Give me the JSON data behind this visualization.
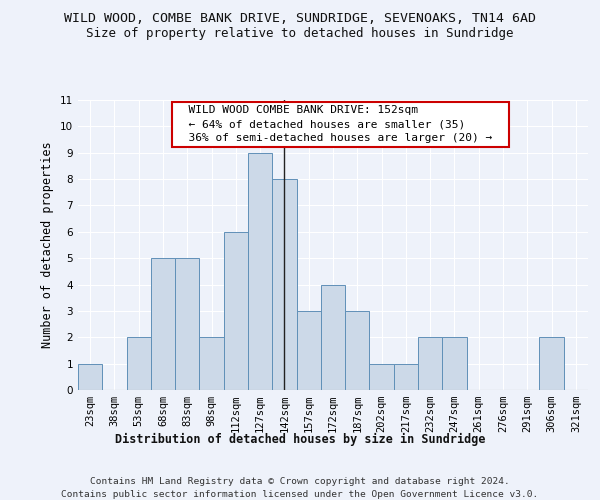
{
  "title": "WILD WOOD, COMBE BANK DRIVE, SUNDRIDGE, SEVENOAKS, TN14 6AD",
  "subtitle": "Size of property relative to detached houses in Sundridge",
  "xlabel": "Distribution of detached houses by size in Sundridge",
  "ylabel": "Number of detached properties",
  "footer_line1": "Contains HM Land Registry data © Crown copyright and database right 2024.",
  "footer_line2": "Contains public sector information licensed under the Open Government Licence v3.0.",
  "categories": [
    "23sqm",
    "38sqm",
    "53sqm",
    "68sqm",
    "83sqm",
    "98sqm",
    "112sqm",
    "127sqm",
    "142sqm",
    "157sqm",
    "172sqm",
    "187sqm",
    "202sqm",
    "217sqm",
    "232sqm",
    "247sqm",
    "261sqm",
    "276sqm",
    "291sqm",
    "306sqm",
    "321sqm"
  ],
  "values": [
    1,
    0,
    2,
    5,
    5,
    2,
    6,
    9,
    8,
    3,
    4,
    3,
    1,
    1,
    2,
    2,
    0,
    0,
    0,
    2,
    0
  ],
  "property_bin_index": 8,
  "bar_color": "#ccd9e8",
  "bar_edge_color": "#6090b8",
  "highlight_line_color": "#222222",
  "annotation_box_text": "  WILD WOOD COMBE BANK DRIVE: 152sqm  \n  ← 64% of detached houses are smaller (35)  \n  36% of semi-detached houses are larger (20) →  ",
  "annotation_box_edge_color": "#cc0000",
  "annotation_box_face_color": "#ffffff",
  "ylim": [
    0,
    11
  ],
  "yticks": [
    0,
    1,
    2,
    3,
    4,
    5,
    6,
    7,
    8,
    9,
    10,
    11
  ],
  "background_color": "#eef2fa",
  "grid_color": "#ffffff",
  "title_fontsize": 9.5,
  "subtitle_fontsize": 9,
  "axis_label_fontsize": 8.5,
  "tick_fontsize": 7.5,
  "annotation_fontsize": 8,
  "footer_fontsize": 6.8
}
